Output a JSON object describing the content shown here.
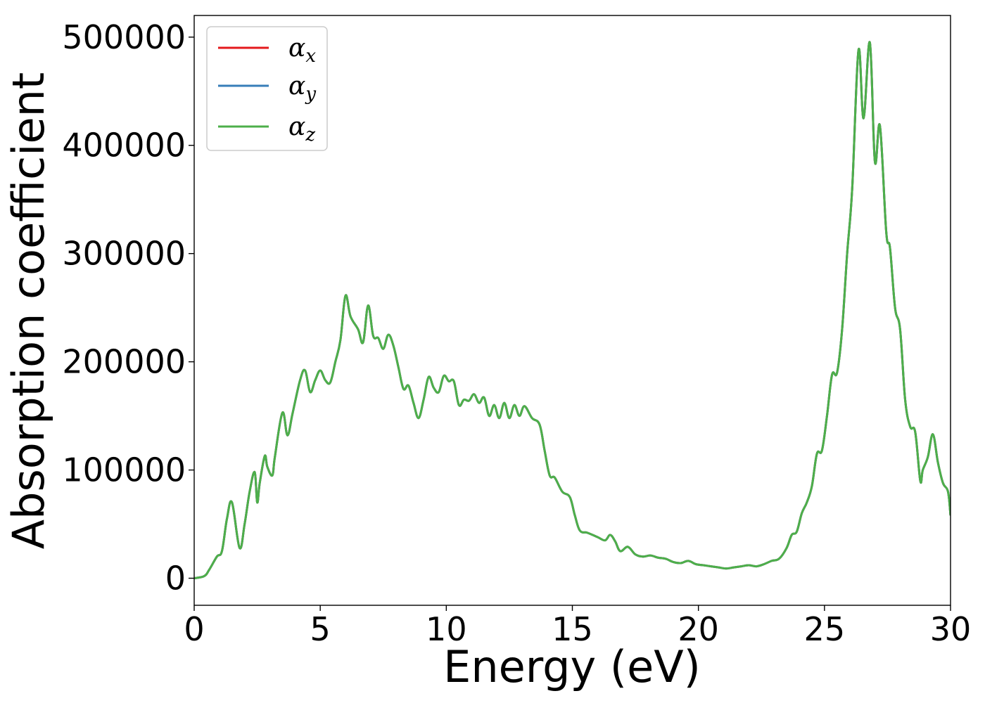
{
  "chart_data": {
    "type": "line",
    "title": "",
    "xlabel": "Energy (eV)",
    "ylabel": "Absorption coefficient",
    "xlim": [
      0,
      30
    ],
    "ylim": [
      -25000,
      520000
    ],
    "xticks": [
      0,
      5,
      10,
      15,
      20,
      25,
      30
    ],
    "yticks": [
      0,
      100000,
      200000,
      300000,
      400000,
      500000
    ],
    "xtick_labels": [
      "0",
      "5",
      "10",
      "15",
      "20",
      "25",
      "30"
    ],
    "ytick_labels": [
      "0",
      "100000",
      "200000",
      "300000",
      "400000",
      "500000"
    ],
    "grid": false,
    "legend_position": "top-left",
    "series": [
      {
        "name": "αx",
        "symbol": "α",
        "subscript": "x",
        "color": "#e41a1c"
      },
      {
        "name": "αy",
        "symbol": "α",
        "subscript": "y",
        "color": "#377eb8"
      },
      {
        "name": "αz",
        "symbol": "α",
        "subscript": "z",
        "color": "#4daf4a"
      }
    ],
    "x": [
      0,
      0.4,
      0.6,
      0.9,
      1.1,
      1.3,
      1.5,
      1.8,
      2.0,
      2.2,
      2.4,
      2.5,
      2.6,
      2.8,
      2.9,
      3.1,
      3.2,
      3.5,
      3.7,
      3.9,
      4.2,
      4.4,
      4.6,
      4.8,
      5.0,
      5.2,
      5.4,
      5.6,
      5.8,
      6.0,
      6.2,
      6.5,
      6.7,
      6.9,
      7.1,
      7.3,
      7.5,
      7.7,
      7.9,
      8.1,
      8.3,
      8.5,
      8.7,
      8.9,
      9.1,
      9.3,
      9.5,
      9.7,
      9.9,
      10.1,
      10.3,
      10.5,
      10.7,
      10.9,
      11.1,
      11.3,
      11.5,
      11.7,
      11.9,
      12.1,
      12.3,
      12.5,
      12.7,
      12.9,
      13.1,
      13.4,
      13.7,
      13.9,
      14.1,
      14.3,
      14.6,
      14.9,
      15.1,
      15.3,
      15.6,
      16.0,
      16.3,
      16.5,
      16.7,
      16.9,
      17.2,
      17.5,
      17.8,
      18.1,
      18.4,
      18.7,
      19.0,
      19.3,
      19.6,
      19.9,
      20.2,
      20.5,
      20.8,
      21.1,
      21.4,
      21.7,
      22.0,
      22.3,
      22.6,
      22.9,
      23.2,
      23.5,
      23.7,
      23.9,
      24.1,
      24.3,
      24.5,
      24.7,
      24.9,
      25.1,
      25.3,
      25.5,
      25.7,
      25.9,
      26.1,
      26.35,
      26.55,
      26.8,
      27.0,
      27.2,
      27.45,
      27.6,
      27.8,
      28.0,
      28.2,
      28.4,
      28.6,
      28.8,
      28.9,
      29.1,
      29.3,
      29.5,
      29.7,
      29.9,
      30.0
    ],
    "values": [
      0,
      2000,
      8000,
      20000,
      25000,
      55000,
      70000,
      28000,
      50000,
      80000,
      98000,
      70000,
      88000,
      113000,
      103000,
      95000,
      112000,
      153000,
      132000,
      152000,
      183000,
      192000,
      172000,
      183000,
      192000,
      183000,
      181000,
      200000,
      220000,
      261000,
      242000,
      230000,
      218000,
      252000,
      224000,
      222000,
      212000,
      225000,
      215000,
      195000,
      175000,
      178000,
      162000,
      148000,
      165000,
      186000,
      176000,
      172000,
      187000,
      182000,
      182000,
      160000,
      165000,
      164000,
      170000,
      162000,
      167000,
      150000,
      160000,
      148000,
      162000,
      148000,
      160000,
      150000,
      159000,
      148000,
      142000,
      118000,
      95000,
      93000,
      80000,
      75000,
      58000,
      44000,
      42000,
      38000,
      35000,
      40000,
      34000,
      25000,
      29000,
      22000,
      20000,
      21000,
      19000,
      18000,
      15000,
      14000,
      16000,
      13000,
      12000,
      11000,
      10000,
      9000,
      10000,
      11000,
      12000,
      11000,
      13000,
      16000,
      18000,
      28000,
      40000,
      43000,
      60000,
      70000,
      85000,
      115000,
      118000,
      150000,
      188000,
      190000,
      230000,
      300000,
      360000,
      488000,
      425000,
      495000,
      385000,
      418000,
      320000,
      305000,
      250000,
      230000,
      165000,
      140000,
      135000,
      90000,
      100000,
      112000,
      133000,
      107000,
      88000,
      80000,
      58000
    ]
  }
}
